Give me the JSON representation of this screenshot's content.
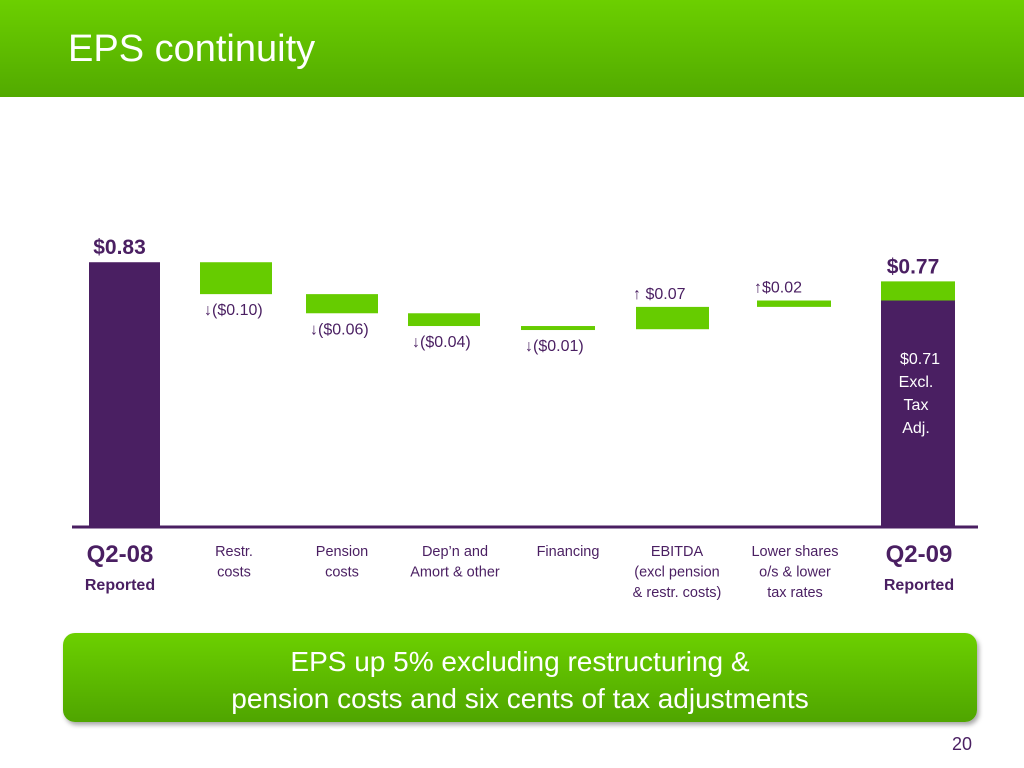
{
  "slide": {
    "title": "EPS continuity",
    "page_number": "20",
    "callout": {
      "line1": "EPS up 5% excluding restructuring &",
      "line2": "pension costs and six cents of tax adjustments"
    }
  },
  "colors": {
    "header_green": "#5cbf00",
    "bar_green": "#66cc00",
    "total_purple": "#4a1f62",
    "text_purple": "#4a1f62"
  },
  "chart_data": {
    "type": "bar",
    "subtype": "waterfall",
    "steps": [
      {
        "category": [
          "Q2-08",
          "Reported"
        ],
        "kind": "total",
        "value": 0.83,
        "label": "$0.83"
      },
      {
        "category": [
          "Restr.",
          "costs"
        ],
        "kind": "delta",
        "value": -0.1,
        "direction": "down",
        "label": "($0.10)"
      },
      {
        "category": [
          "Pension",
          "costs"
        ],
        "kind": "delta",
        "value": -0.06,
        "direction": "down",
        "label": "($0.06)"
      },
      {
        "category": [
          "Dep’n and",
          "Amort & other"
        ],
        "kind": "delta",
        "value": -0.04,
        "direction": "down",
        "label": "($0.04)"
      },
      {
        "category": [
          "Financing"
        ],
        "kind": "delta",
        "value": -0.01,
        "direction": "down",
        "label": "($0.01)"
      },
      {
        "category": [
          "EBITDA",
          "(excl pension",
          "& restr. costs)"
        ],
        "kind": "delta",
        "value": 0.07,
        "direction": "up",
        "label": "$0.07"
      },
      {
        "category": [
          "Lower shares",
          "o/s & lower",
          "tax rates"
        ],
        "kind": "delta",
        "value": 0.02,
        "direction": "up",
        "label": "$0.02"
      },
      {
        "category": [
          "Q2-09",
          "Reported"
        ],
        "kind": "total",
        "value": 0.77,
        "label": "$0.77",
        "inner_value": 0.71,
        "inner_label": [
          "$0.71",
          "Excl.",
          "Tax",
          "Adj."
        ]
      }
    ],
    "ylim": [
      0,
      0.85
    ]
  }
}
